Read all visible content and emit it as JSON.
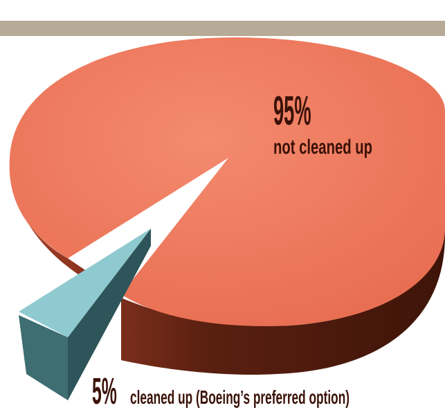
{
  "chart_data": {
    "type": "pie",
    "title": "",
    "categories": [
      "not cleaned up",
      "cleaned up (Boeing’s preferred option)"
    ],
    "values": [
      95,
      5
    ],
    "unit": "%",
    "slices": [
      {
        "label": "not cleaned up",
        "value": 95,
        "value_text": "95%",
        "color": "#f07d60"
      },
      {
        "label": "cleaned up (Boeing’s preferred option)",
        "value": 5,
        "value_text": "5%",
        "color": "#8fcad0"
      }
    ],
    "legend": "none",
    "grid": false,
    "style": "3d-exploded"
  },
  "colors": {
    "top_bar": "#b7aa96",
    "slice_main_top": "#f07d60",
    "slice_main_side": "#5a2010",
    "slice_small_top": "#8fcad0",
    "slice_small_side": "#3e6d72",
    "label_text": "#3b1208"
  }
}
